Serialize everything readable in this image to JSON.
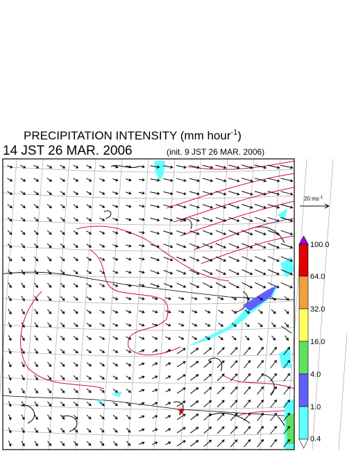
{
  "header": {
    "title": "PRECIPITATION INTENSITY (mm hour",
    "title_exponent": "-1",
    "title_close": ")",
    "time": "14 JST 26 MAR. 2006",
    "init": "(init. 9 JST 26 MAR. 2006)"
  },
  "vector_legend": {
    "label": "20 ms",
    "exponent": "-1"
  },
  "colorbar": {
    "labels": [
      "100.0",
      "64.0",
      "32.0",
      "16.0",
      "4.0",
      "1.0",
      "0.4"
    ]
  }
}
